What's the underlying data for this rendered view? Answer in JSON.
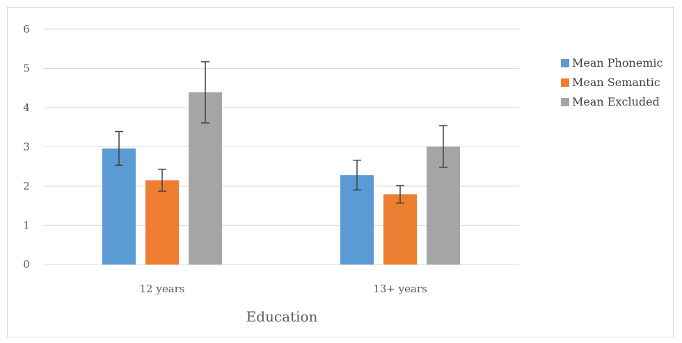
{
  "chart_data": {
    "type": "bar",
    "title": "",
    "xlabel": "Education",
    "ylabel": "",
    "ylim": [
      0,
      6
    ],
    "yticks": [
      0,
      1,
      2,
      3,
      4,
      5,
      6
    ],
    "ytick_labels": [
      "0",
      "1",
      "2",
      "3",
      "4",
      "5",
      "6"
    ],
    "categories": [
      "12 years",
      "13+ years"
    ],
    "grid": true,
    "legend_position": "right",
    "series": [
      {
        "name": "Mean Phonemic",
        "color": "#5b9bd5",
        "values": [
          2.96,
          2.28
        ],
        "error": [
          0.43,
          0.38
        ]
      },
      {
        "name": "Mean Semantic",
        "color": "#ed7d31",
        "values": [
          2.15,
          1.79
        ],
        "error": [
          0.28,
          0.22
        ]
      },
      {
        "name": "Mean Excluded",
        "color": "#a5a5a5",
        "values": [
          4.39,
          3.01
        ],
        "error": [
          0.78,
          0.53
        ]
      }
    ]
  }
}
